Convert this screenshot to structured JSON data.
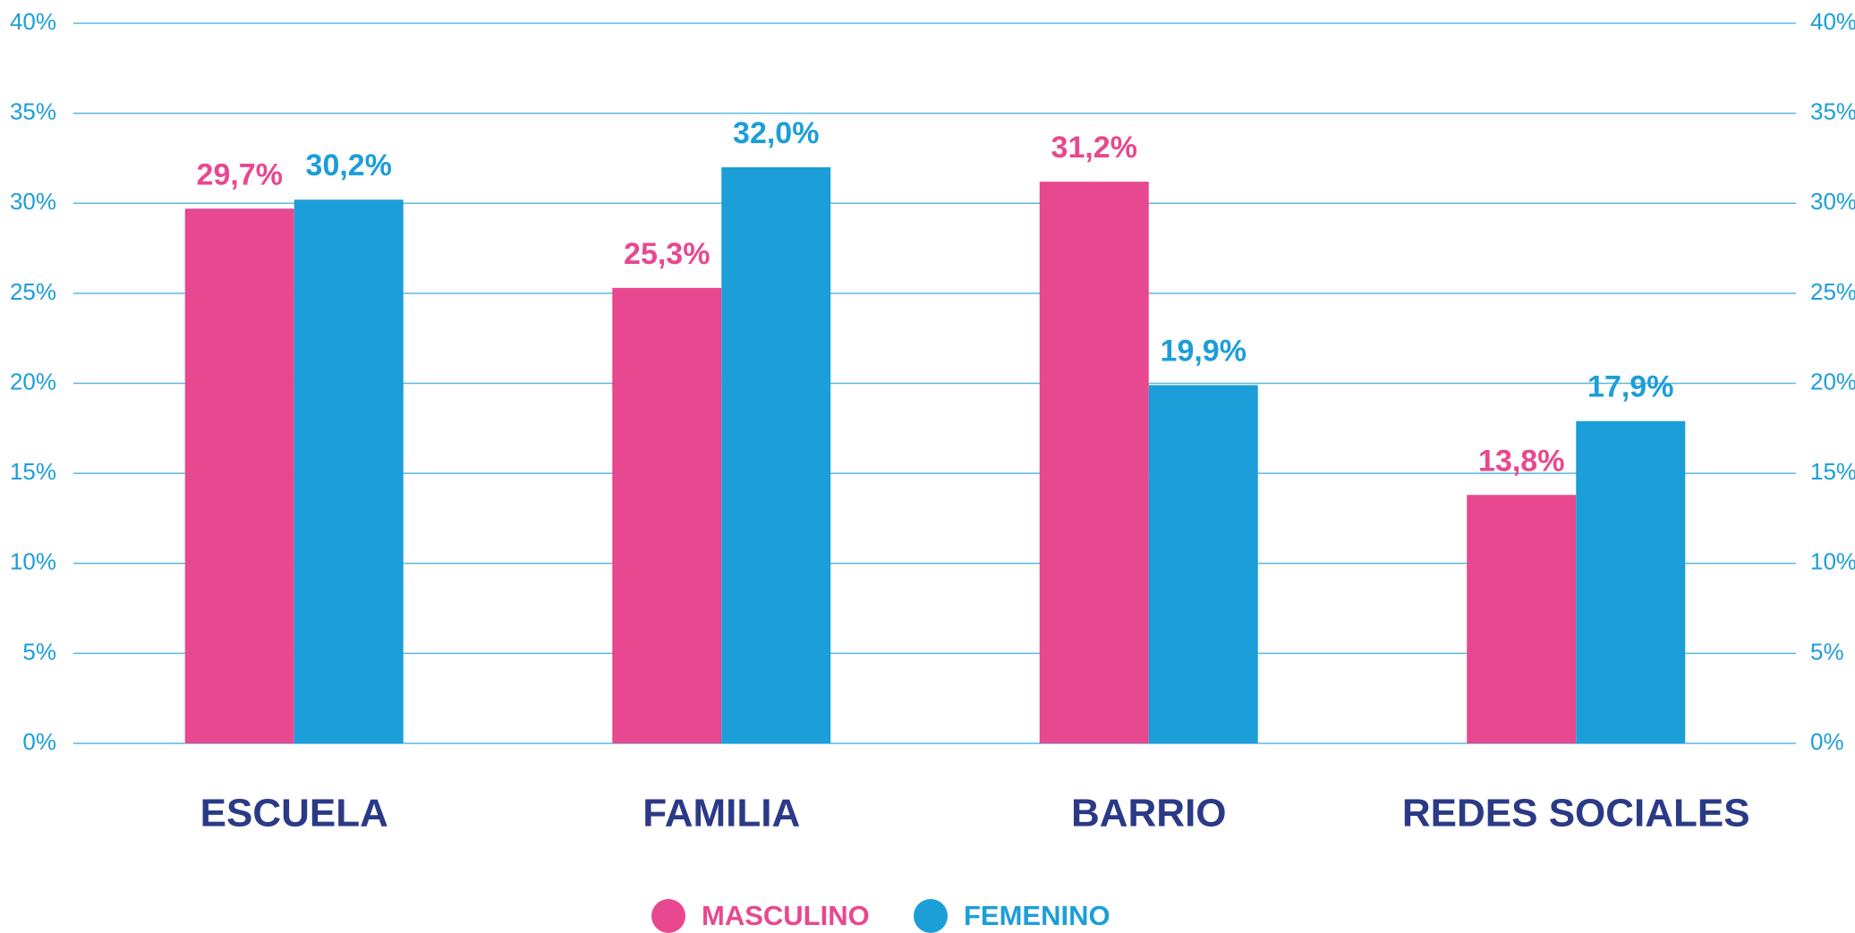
{
  "chart_data": {
    "type": "bar",
    "categories": [
      "ESCUELA",
      "FAMILIA",
      "BARRIO",
      "REDES SOCIALES"
    ],
    "series": [
      {
        "name": "MASCULINO",
        "color": "#e8488f",
        "values": [
          29.7,
          25.3,
          31.2,
          13.8
        ],
        "value_labels": [
          "29,7%",
          "25,3%",
          "31,2%",
          "13,8%"
        ]
      },
      {
        "name": "FEMENINO",
        "color": "#1c9ed9",
        "values": [
          30.2,
          32.0,
          19.9,
          17.9
        ],
        "value_labels": [
          "30,2%",
          "32,0%",
          "19,9%",
          "17,9%"
        ]
      }
    ],
    "ylim": [
      0,
      40
    ],
    "yticks": [
      {
        "value": 0,
        "label": "0%"
      },
      {
        "value": 5,
        "label": "5%"
      },
      {
        "value": 10,
        "label": "10%"
      },
      {
        "value": 15,
        "label": "15%"
      },
      {
        "value": 20,
        "label": "20%"
      },
      {
        "value": 25,
        "label": "25%"
      },
      {
        "value": 30,
        "label": "30%"
      },
      {
        "value": 35,
        "label": "35%"
      },
      {
        "value": 40,
        "label": "40%"
      }
    ],
    "grid": true,
    "legend": "bottom"
  }
}
